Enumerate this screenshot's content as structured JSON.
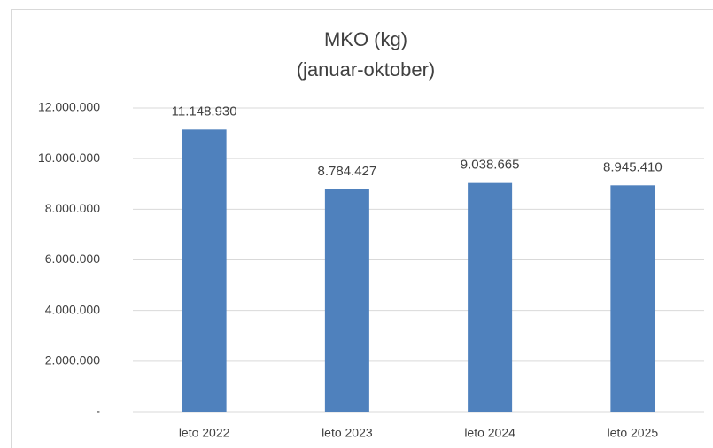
{
  "chart_data": {
    "type": "bar",
    "title": "MKO (kg)",
    "subtitle": "(januar-oktober)",
    "categories": [
      "leto 2022",
      "leto 2023",
      "leto 2024",
      "leto 2025"
    ],
    "values": [
      11148930,
      8784427,
      9038665,
      8945410
    ],
    "value_labels": [
      "11.148.930",
      "8.784.427",
      "9.038.665",
      "8.945.410"
    ],
    "color": "#4f81bd",
    "ylim": [
      0,
      12000000
    ],
    "yticks": [
      {
        "value": 0,
        "label": "-"
      },
      {
        "value": 2000000,
        "label": "2.000.000"
      },
      {
        "value": 4000000,
        "label": "4.000.000"
      },
      {
        "value": 6000000,
        "label": "6.000.000"
      },
      {
        "value": 8000000,
        "label": "8.000.000"
      },
      {
        "value": 10000000,
        "label": "10.000.000"
      },
      {
        "value": 12000000,
        "label": "12.000.000"
      }
    ],
    "grid": true
  }
}
